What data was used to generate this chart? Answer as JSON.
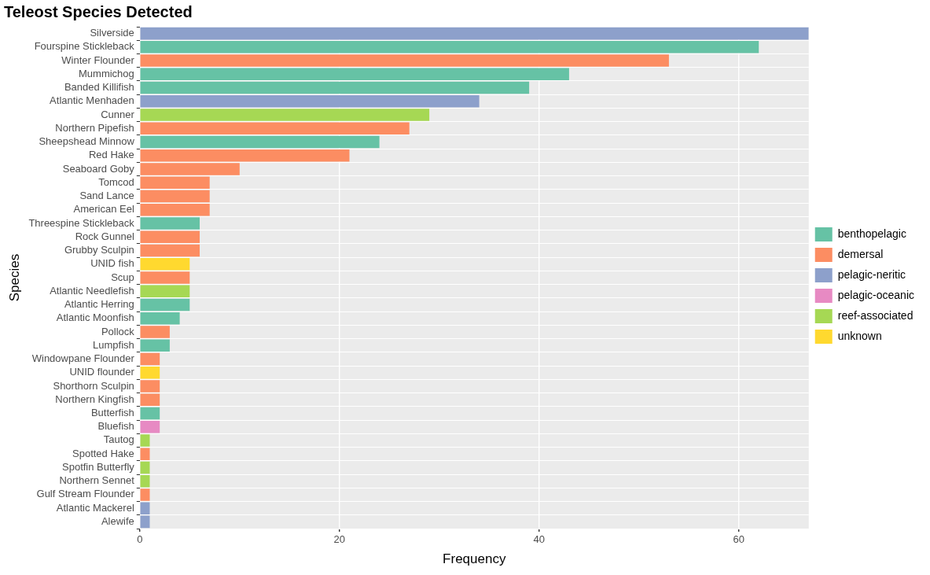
{
  "chart_data": {
    "type": "bar",
    "orientation": "horizontal",
    "stacked": true,
    "title": "Teleost Species Detected",
    "xlabel": "Frequency",
    "ylabel": "Species",
    "categories": [
      "Silverside",
      "Fourspine Stickleback",
      "Winter Flounder",
      "Mummichog",
      "Banded Killifish",
      "Atlantic Menhaden",
      "Cunner",
      "Northern Pipefish",
      "Sheepshead Minnow",
      "Red Hake",
      "Seaboard Goby",
      "Tomcod",
      "Sand Lance",
      "American Eel",
      "Threespine Stickleback",
      "Rock Gunnel",
      "Grubby Sculpin",
      "UNID fish",
      "Scup",
      "Atlantic Needlefish",
      "Atlantic Herring",
      "Atlantic Moonfish",
      "Pollock",
      "Lumpfish",
      "Windowpane Flounder",
      "UNID flounder",
      "Shorthorn Sculpin",
      "Northern Kingfish",
      "Butterfish",
      "Bluefish",
      "Tautog",
      "Spotted Hake",
      "Spotfin Butterfly",
      "Northern Sennet",
      "Gulf Stream Flounder",
      "Atlantic Mackerel",
      "Alewife"
    ],
    "series": [
      {
        "name": "benthopelagic",
        "color": "#66c2a5",
        "values": [
          null,
          62,
          null,
          43,
          39,
          null,
          null,
          null,
          24,
          null,
          null,
          null,
          null,
          null,
          6,
          null,
          null,
          null,
          null,
          null,
          5,
          4,
          null,
          3,
          null,
          null,
          null,
          null,
          2,
          null,
          null,
          null,
          null,
          null,
          null,
          null,
          null
        ]
      },
      {
        "name": "demersal",
        "color": "#fc8d62",
        "values": [
          null,
          null,
          53,
          null,
          null,
          null,
          null,
          27,
          null,
          21,
          10,
          7,
          7,
          7,
          null,
          6,
          6,
          null,
          5,
          null,
          null,
          null,
          3,
          null,
          2,
          null,
          2,
          2,
          null,
          null,
          null,
          1,
          null,
          null,
          1,
          null,
          null
        ]
      },
      {
        "name": "pelagic-neritic",
        "color": "#8da0cb",
        "values": [
          67,
          null,
          null,
          null,
          null,
          34,
          null,
          null,
          null,
          null,
          null,
          null,
          null,
          null,
          null,
          null,
          null,
          null,
          null,
          null,
          null,
          null,
          null,
          null,
          null,
          null,
          null,
          null,
          null,
          null,
          null,
          null,
          null,
          null,
          null,
          1,
          1
        ]
      },
      {
        "name": "pelagic-oceanic",
        "color": "#e78ac3",
        "values": [
          null,
          null,
          null,
          null,
          null,
          null,
          null,
          null,
          null,
          null,
          null,
          null,
          null,
          null,
          null,
          null,
          null,
          null,
          null,
          null,
          null,
          null,
          null,
          null,
          null,
          null,
          null,
          null,
          null,
          2,
          null,
          null,
          null,
          null,
          null,
          null,
          null
        ]
      },
      {
        "name": "reef-associated",
        "color": "#a6d854",
        "values": [
          null,
          null,
          null,
          null,
          null,
          null,
          29,
          null,
          null,
          null,
          null,
          null,
          null,
          null,
          null,
          null,
          null,
          null,
          null,
          5,
          null,
          null,
          null,
          null,
          null,
          null,
          null,
          null,
          null,
          null,
          1,
          null,
          1,
          1,
          null,
          null,
          null
        ]
      },
      {
        "name": "unknown",
        "color": "#ffd92f",
        "values": [
          null,
          null,
          null,
          null,
          null,
          null,
          null,
          null,
          null,
          null,
          null,
          null,
          null,
          null,
          null,
          null,
          null,
          5,
          null,
          null,
          null,
          null,
          null,
          null,
          null,
          2,
          null,
          null,
          null,
          null,
          null,
          null,
          null,
          null,
          null,
          null,
          null
        ]
      }
    ],
    "xlim": [
      0,
      67
    ],
    "xticks": [
      0,
      20,
      40,
      60
    ],
    "grid": true,
    "legend": "right"
  }
}
